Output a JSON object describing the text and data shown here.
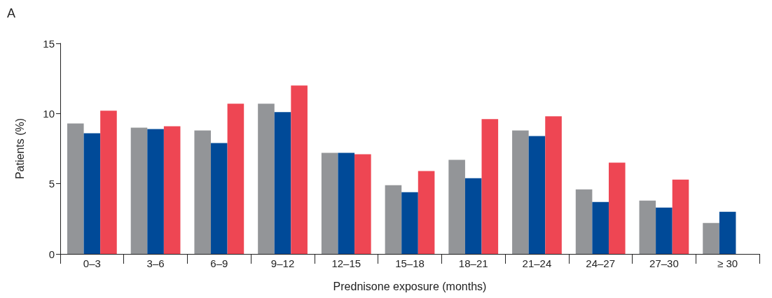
{
  "chart_data": {
    "type": "bar",
    "annotations": [
      "A"
    ],
    "xlabel": "Prednisone exposure (months)",
    "ylabel": "Patients (%)",
    "categories": [
      "0–3",
      "3–6",
      "6–9",
      "9–12",
      "12–15",
      "15–18",
      "18–21",
      "21–24",
      "24–27",
      "27–30",
      "≥ 30"
    ],
    "series": [
      {
        "color": "#939598",
        "values": [
          9.3,
          9.0,
          8.8,
          10.7,
          7.2,
          4.9,
          6.7,
          8.8,
          4.6,
          3.8,
          2.2
        ]
      },
      {
        "color": "#004a98",
        "values": [
          8.6,
          8.9,
          7.9,
          10.1,
          7.2,
          4.4,
          5.4,
          8.4,
          3.7,
          3.3,
          3.0
        ]
      },
      {
        "color": "#ee4653",
        "values": [
          10.2,
          9.1,
          10.7,
          12.0,
          7.1,
          5.9,
          9.6,
          9.8,
          6.5,
          5.3,
          null
        ]
      }
    ],
    "ylim": [
      0,
      15
    ],
    "yticks": [
      0,
      5,
      10,
      15
    ],
    "grid": false
  }
}
